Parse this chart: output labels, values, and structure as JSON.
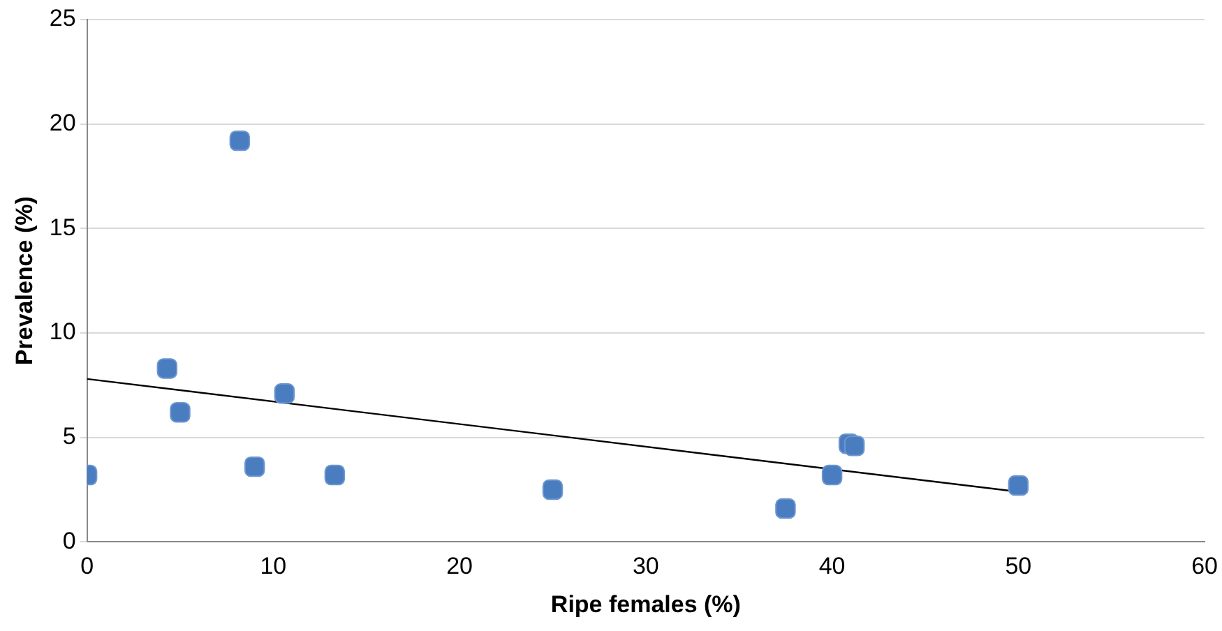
{
  "chart_data": {
    "type": "scatter",
    "xlabel": "Ripe females (%)",
    "ylabel": "Prevalence (%)",
    "xlim": [
      0,
      60
    ],
    "xticks": [
      0,
      10,
      20,
      30,
      40,
      50,
      60
    ],
    "ylim": [
      0,
      25
    ],
    "yticks": [
      0,
      5,
      10,
      15,
      20,
      25
    ],
    "grid": "y",
    "legend": false,
    "marker": "square",
    "series": [
      {
        "color": "#4a7cc0",
        "x": [
          0,
          8.2,
          4.3,
          5,
          9,
          10.6,
          13.3,
          25,
          37.5,
          40,
          40.9,
          41.2,
          50
        ],
        "values": [
          3.2,
          19.2,
          8.3,
          6.2,
          3.6,
          7.1,
          3.2,
          2.5,
          1.6,
          3.2,
          4.7,
          4.6,
          2.7
        ]
      },
      {
        "type": "line",
        "color": "#000000",
        "marker": "none",
        "x": [
          0,
          50
        ],
        "values": [
          7.8,
          2.4
        ]
      }
    ]
  }
}
